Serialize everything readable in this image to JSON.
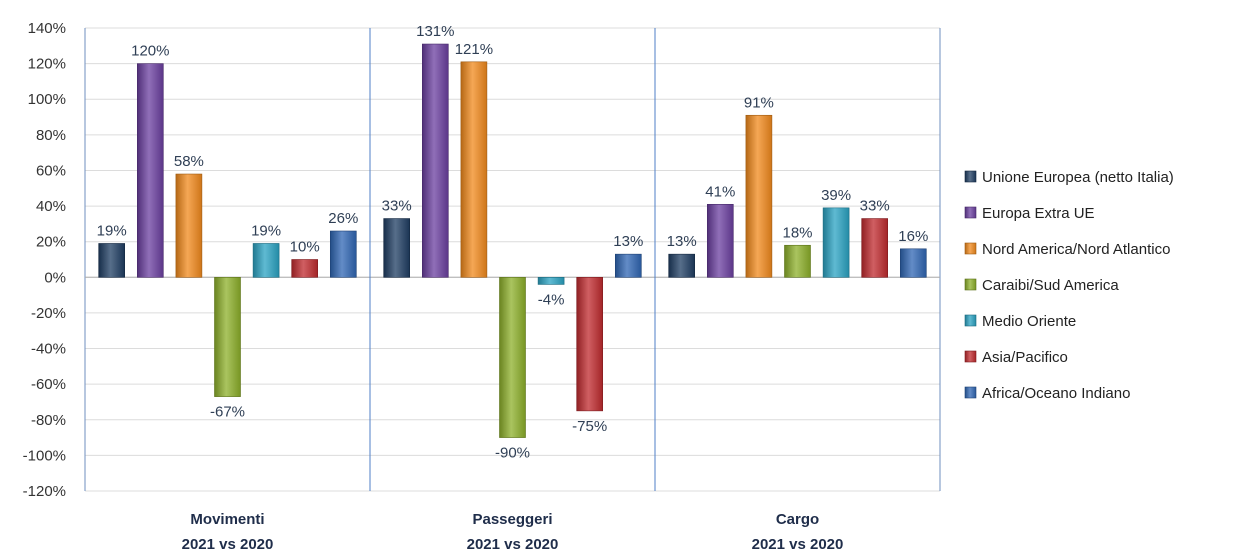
{
  "chart_data": {
    "type": "bar",
    "title": "",
    "xlabel": "",
    "ylabel": "",
    "ylim": [
      -120,
      140
    ],
    "ytick_step": 20,
    "ytick_labels": [
      "140%",
      "120%",
      "100%",
      "80%",
      "60%",
      "40%",
      "20%",
      "0%",
      "-20%",
      "-40%",
      "-60%",
      "-80%",
      "-100%",
      "-120%"
    ],
    "grid": true,
    "legend_position": "right",
    "categories": [
      {
        "line1": "Movimenti",
        "line2": "2021 vs 2020"
      },
      {
        "line1": "Passeggeri",
        "line2": "2021 vs 2020"
      },
      {
        "line1": "Cargo",
        "line2": "2021 vs 2020"
      }
    ],
    "series": [
      {
        "name": "Unione Europea (netto Italia)",
        "color": "#1f3d63",
        "values": [
          19,
          33,
          13
        ],
        "labels": [
          "19%",
          "33%",
          "13%"
        ]
      },
      {
        "name": "Europa Extra UE",
        "color": "#6b3fa0",
        "values": [
          120,
          131,
          41
        ],
        "labels": [
          "120%",
          "131%",
          "41%"
        ]
      },
      {
        "name": "Nord America/Nord Atlantico",
        "color": "#f28a1c",
        "values": [
          58,
          121,
          91
        ],
        "labels": [
          "58%",
          "121%",
          "91%"
        ]
      },
      {
        "name": "Caraibi/Sud America",
        "color": "#8db02a",
        "values": [
          -67,
          -90,
          18
        ],
        "labels": [
          "-67%",
          "-90%",
          "18%"
        ]
      },
      {
        "name": "Medio Oriente",
        "color": "#2aa3c3",
        "values": [
          19,
          -4,
          39
        ],
        "labels": [
          "19%",
          "-4%",
          "39%"
        ]
      },
      {
        "name": "Asia/Pacifico",
        "color": "#c02a2e",
        "values": [
          10,
          -75,
          33
        ],
        "labels": [
          "10%",
          "-75%",
          "33%"
        ]
      },
      {
        "name": "Africa/Oceano Indiano",
        "color": "#2f66b4",
        "values": [
          26,
          13,
          16
        ],
        "labels": [
          "26%",
          "13%",
          "16%"
        ]
      }
    ]
  }
}
